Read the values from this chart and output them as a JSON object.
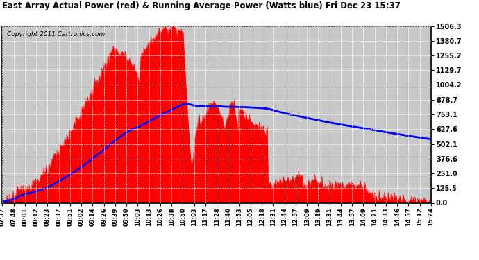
{
  "title": "East Array Actual Power (red) & Running Average Power (Watts blue) Fri Dec 23 15:37",
  "copyright": "Copyright 2011 Cartronics.com",
  "plot_bg_color": "#c8c8c8",
  "bar_color": "#ff0000",
  "line_color": "#0000ff",
  "ytick_labels": [
    "0.0",
    "125.5",
    "251.0",
    "376.6",
    "502.1",
    "627.6",
    "753.1",
    "878.7",
    "1004.2",
    "1129.7",
    "1255.2",
    "1380.7",
    "1506.3"
  ],
  "ytick_values": [
    0.0,
    125.5,
    251.0,
    376.6,
    502.1,
    627.6,
    753.1,
    878.7,
    1004.2,
    1129.7,
    1255.2,
    1380.7,
    1506.3
  ],
  "xtick_labels": [
    "07:37",
    "07:48",
    "08:01",
    "08:12",
    "08:23",
    "08:37",
    "08:51",
    "09:02",
    "09:14",
    "09:26",
    "09:39",
    "09:50",
    "10:03",
    "10:13",
    "10:26",
    "10:38",
    "10:50",
    "11:03",
    "11:17",
    "11:28",
    "11:40",
    "11:53",
    "12:05",
    "12:18",
    "12:31",
    "12:44",
    "12:57",
    "13:09",
    "13:19",
    "13:31",
    "13:44",
    "13:57",
    "14:09",
    "14:21",
    "14:33",
    "14:46",
    "14:57",
    "15:12",
    "15:24"
  ],
  "ylim": [
    0,
    1506.3
  ],
  "n_points": 480,
  "grid_color": "white",
  "grid_linestyle": "--",
  "title_fontsize": 8.5,
  "copyright_fontsize": 6.5,
  "tick_fontsize": 7,
  "xtick_fontsize": 6,
  "line_width": 2.0
}
